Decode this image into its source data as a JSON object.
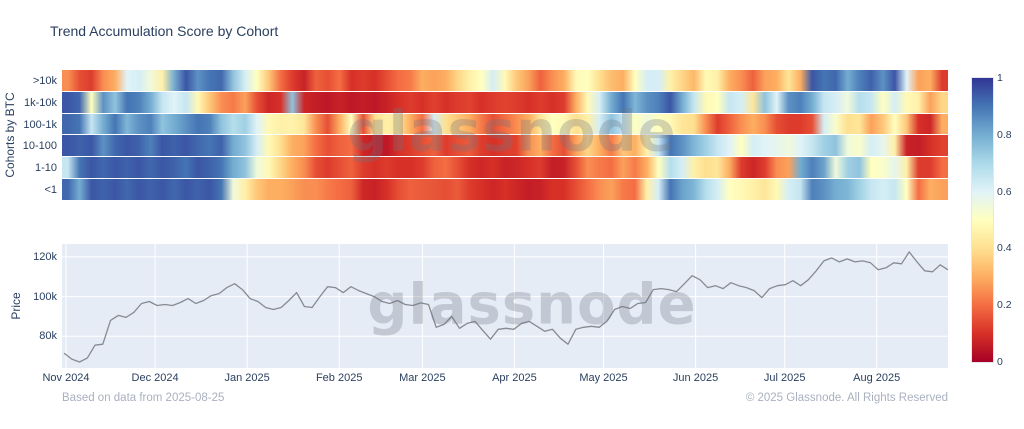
{
  "title": "Trend Accumulation Score by Cohort",
  "watermark": "glassnode",
  "heatmap": {
    "ylabel": "Cohorts by BTC",
    "cohorts": [
      ">10k",
      "1k-10k",
      "100-1k",
      "10-100",
      "1-10",
      "<1"
    ],
    "colorbar": {
      "ticks": [
        "1",
        "0.8",
        "0.6",
        "0.4",
        "0.2",
        "0"
      ]
    }
  },
  "price_chart": {
    "ylabel": "Price",
    "yticks": [
      "120k",
      "100k",
      "80k"
    ],
    "xticks": [
      "Nov 2024",
      "Dec 2024",
      "Jan 2025",
      "Feb 2025",
      "Mar 2025",
      "Apr 2025",
      "May 2025",
      "Jun 2025",
      "Jul 2025",
      "Aug 2025"
    ]
  },
  "footer": {
    "left": "Based on data from 2025-08-25",
    "right": "© 2025 Glassnode. All Rights Reserved"
  },
  "colors": {
    "title_text": "#2a3f5f",
    "footer_text": "#a9b0bf",
    "price_line": "#878b91",
    "price_plot_bg": "#e5ecf6",
    "gridline": "#ffffff",
    "colormap_low": "#a50026",
    "colormap_mid": "#ffffbf",
    "colormap_high": "#313695"
  },
  "chart_data": [
    {
      "type": "heatmap",
      "title": "Trend Accumulation Score by Cohort",
      "ylabel": "Cohorts by BTC",
      "x_range": [
        "Nov 2024",
        "Aug 2025"
      ],
      "colorscale": "RdYlBu",
      "zlim": [
        0,
        1
      ],
      "colorbar_ticks": [
        1,
        0.8,
        0.6,
        0.4,
        0.2,
        0
      ],
      "rows": [
        ">10k",
        "1k-10k",
        "100-1k",
        "10-100",
        "1-10",
        "<1"
      ],
      "values": {
        ">10k": [
          0.25,
          0.15,
          0.12,
          0.25,
          0.3,
          0.6,
          0.62,
          0.55,
          0.45,
          0.8,
          0.95,
          0.85,
          0.9,
          0.92,
          0.75,
          0.62,
          0.5,
          0.35,
          0.2,
          0.12,
          0.07,
          0.18,
          0.15,
          0.2,
          0.1,
          0.12,
          0.1,
          0.15,
          0.2,
          0.22,
          0.3,
          0.28,
          0.3,
          0.38,
          0.45,
          0.5,
          0.62,
          0.48,
          0.35,
          0.28,
          0.18,
          0.25,
          0.3,
          0.48,
          0.5,
          0.4,
          0.33,
          0.3,
          0.5,
          0.62,
          0.62,
          0.45,
          0.38,
          0.32,
          0.48,
          0.45,
          0.3,
          0.25,
          0.18,
          0.28,
          0.3,
          0.42,
          0.3,
          0.95,
          0.9,
          0.92,
          0.8,
          0.88,
          0.93,
          0.85,
          0.95,
          0.6,
          0.28,
          0.3,
          0.12
        ],
        "1k-10k": [
          0.95,
          0.92,
          0.5,
          0.85,
          0.75,
          0.9,
          0.88,
          0.8,
          0.65,
          0.6,
          0.65,
          0.48,
          0.35,
          0.25,
          0.22,
          0.28,
          0.15,
          0.08,
          0.1,
          0.75,
          0.08,
          0.06,
          0.05,
          0.07,
          0.05,
          0.06,
          0.05,
          0.07,
          0.1,
          0.12,
          0.1,
          0.13,
          0.1,
          0.12,
          0.13,
          0.1,
          0.12,
          0.13,
          0.12,
          0.1,
          0.12,
          0.1,
          0.12,
          0.3,
          0.48,
          0.62,
          0.8,
          0.9,
          0.78,
          0.85,
          0.88,
          0.95,
          0.8,
          0.65,
          0.48,
          0.5,
          0.65,
          0.62,
          0.42,
          0.75,
          0.6,
          0.85,
          0.88,
          0.8,
          0.65,
          0.62,
          0.55,
          0.68,
          0.65,
          0.5,
          0.62,
          0.48,
          0.45,
          0.28,
          0.38
        ],
        "100-1k": [
          0.92,
          0.9,
          0.65,
          0.8,
          0.9,
          0.78,
          0.85,
          0.88,
          0.75,
          0.8,
          0.85,
          0.9,
          0.88,
          0.75,
          0.68,
          0.72,
          0.6,
          0.48,
          0.45,
          0.46,
          0.42,
          0.25,
          0.15,
          0.3,
          0.5,
          0.15,
          0.4,
          0.45,
          0.42,
          0.3,
          0.2,
          0.62,
          0.4,
          0.35,
          0.3,
          0.22,
          0.15,
          0.2,
          0.25,
          0.3,
          0.42,
          0.5,
          0.48,
          0.4,
          0.45,
          0.62,
          0.75,
          0.65,
          0.5,
          0.55,
          0.5,
          0.48,
          0.42,
          0.4,
          0.25,
          0.12,
          0.18,
          0.25,
          0.3,
          0.25,
          0.15,
          0.12,
          0.12,
          0.15,
          0.62,
          0.52,
          0.4,
          0.42,
          0.28,
          0.35,
          0.5,
          0.35,
          0.1,
          0.08,
          0.3
        ],
        "10-100": [
          0.95,
          0.93,
          0.95,
          0.85,
          0.92,
          0.95,
          0.93,
          0.88,
          0.95,
          0.93,
          0.95,
          0.92,
          0.9,
          0.93,
          0.8,
          0.75,
          0.62,
          0.48,
          0.4,
          0.3,
          0.28,
          0.2,
          0.15,
          0.18,
          0.2,
          0.08,
          0.06,
          0.05,
          0.1,
          0.12,
          0.15,
          0.18,
          0.12,
          0.15,
          0.17,
          0.12,
          0.1,
          0.12,
          0.13,
          0.25,
          0.3,
          0.2,
          0.15,
          0.28,
          0.38,
          0.3,
          0.22,
          0.35,
          0.3,
          0.45,
          0.65,
          0.9,
          0.85,
          0.78,
          0.72,
          0.65,
          0.6,
          0.5,
          0.62,
          0.6,
          0.58,
          0.55,
          0.6,
          0.65,
          0.72,
          0.75,
          0.55,
          0.52,
          0.62,
          0.58,
          0.45,
          0.07,
          0.06,
          0.1,
          0.13
        ],
        "1-10": [
          0.65,
          0.9,
          0.95,
          0.92,
          0.95,
          0.93,
          0.95,
          0.92,
          0.95,
          0.93,
          0.9,
          0.95,
          0.93,
          0.9,
          0.8,
          0.75,
          0.55,
          0.48,
          0.38,
          0.3,
          0.25,
          0.15,
          0.12,
          0.15,
          0.18,
          0.12,
          0.1,
          0.12,
          0.1,
          0.1,
          0.12,
          0.18,
          0.2,
          0.15,
          0.1,
          0.08,
          0.1,
          0.07,
          0.08,
          0.1,
          0.12,
          0.06,
          0.07,
          0.15,
          0.25,
          0.22,
          0.2,
          0.28,
          0.22,
          0.3,
          0.5,
          0.68,
          0.62,
          0.45,
          0.4,
          0.42,
          0.3,
          0.12,
          0.08,
          0.12,
          0.25,
          0.28,
          0.8,
          0.88,
          0.82,
          0.55,
          0.72,
          0.75,
          0.5,
          0.52,
          0.58,
          0.45,
          0.12,
          0.12,
          0.2
        ],
        "<1": [
          0.92,
          0.8,
          0.95,
          0.93,
          0.95,
          0.92,
          0.95,
          0.93,
          0.95,
          0.92,
          0.95,
          0.93,
          0.95,
          0.9,
          0.55,
          0.45,
          0.35,
          0.3,
          0.3,
          0.28,
          0.25,
          0.25,
          0.22,
          0.2,
          0.18,
          0.08,
          0.07,
          0.1,
          0.15,
          0.18,
          0.17,
          0.16,
          0.15,
          0.17,
          0.12,
          0.1,
          0.08,
          0.1,
          0.08,
          0.06,
          0.07,
          0.1,
          0.1,
          0.15,
          0.2,
          0.25,
          0.28,
          0.22,
          0.2,
          0.45,
          0.62,
          0.9,
          0.82,
          0.78,
          0.68,
          0.62,
          0.5,
          0.48,
          0.45,
          0.42,
          0.48,
          0.62,
          0.65,
          0.88,
          0.85,
          0.8,
          0.78,
          0.72,
          0.65,
          0.62,
          0.65,
          0.5,
          0.2,
          0.3,
          0.28
        ]
      }
    },
    {
      "type": "line",
      "name": "BTC Price",
      "ylabel": "Price",
      "ylim_k": [
        64,
        126.5
      ],
      "ytick_values_k": [
        80,
        100,
        120
      ],
      "x_month_ticks": [
        "Nov 2024",
        "Dec 2024",
        "Jan 2025",
        "Feb 2025",
        "Mar 2025",
        "Apr 2025",
        "May 2025",
        "Jun 2025",
        "Jul 2025",
        "Aug 2025"
      ],
      "month_day_offsets": [
        0,
        30,
        61,
        92,
        120,
        151,
        181,
        212,
        242,
        273
      ],
      "total_days": 297,
      "values_k_usd": [
        71.5,
        68.5,
        67,
        69,
        75.5,
        76,
        88,
        90.5,
        89.5,
        92,
        96.5,
        97.5,
        95.5,
        96,
        95.5,
        97,
        99,
        96.5,
        98,
        100.5,
        101.5,
        104.5,
        106.5,
        103.5,
        99,
        97.5,
        94.5,
        93.5,
        94.5,
        98,
        102,
        95,
        94.5,
        100,
        105,
        104.5,
        102,
        105,
        103,
        101.5,
        100,
        97.5,
        96.5,
        98,
        96,
        95.5,
        96.8,
        96,
        84.5,
        86,
        90,
        84,
        86.5,
        87.5,
        83,
        78.5,
        83.5,
        84,
        83.5,
        86.5,
        87.5,
        85,
        82.5,
        83.5,
        79,
        76,
        83.5,
        84.5,
        85,
        84.5,
        87.5,
        93.5,
        95,
        94,
        96.5,
        97,
        103.5,
        104,
        103.5,
        102.5,
        106.5,
        110.5,
        108.5,
        104.5,
        105.5,
        104,
        107,
        105.5,
        104.5,
        103,
        99.5,
        104,
        105.5,
        106,
        108,
        105.5,
        108.5,
        113,
        118,
        119.5,
        117.5,
        119,
        117.5,
        118,
        117,
        113.5,
        114.5,
        117,
        116.5,
        122.5,
        117.5,
        113,
        112.5,
        116,
        113.5
      ]
    }
  ]
}
